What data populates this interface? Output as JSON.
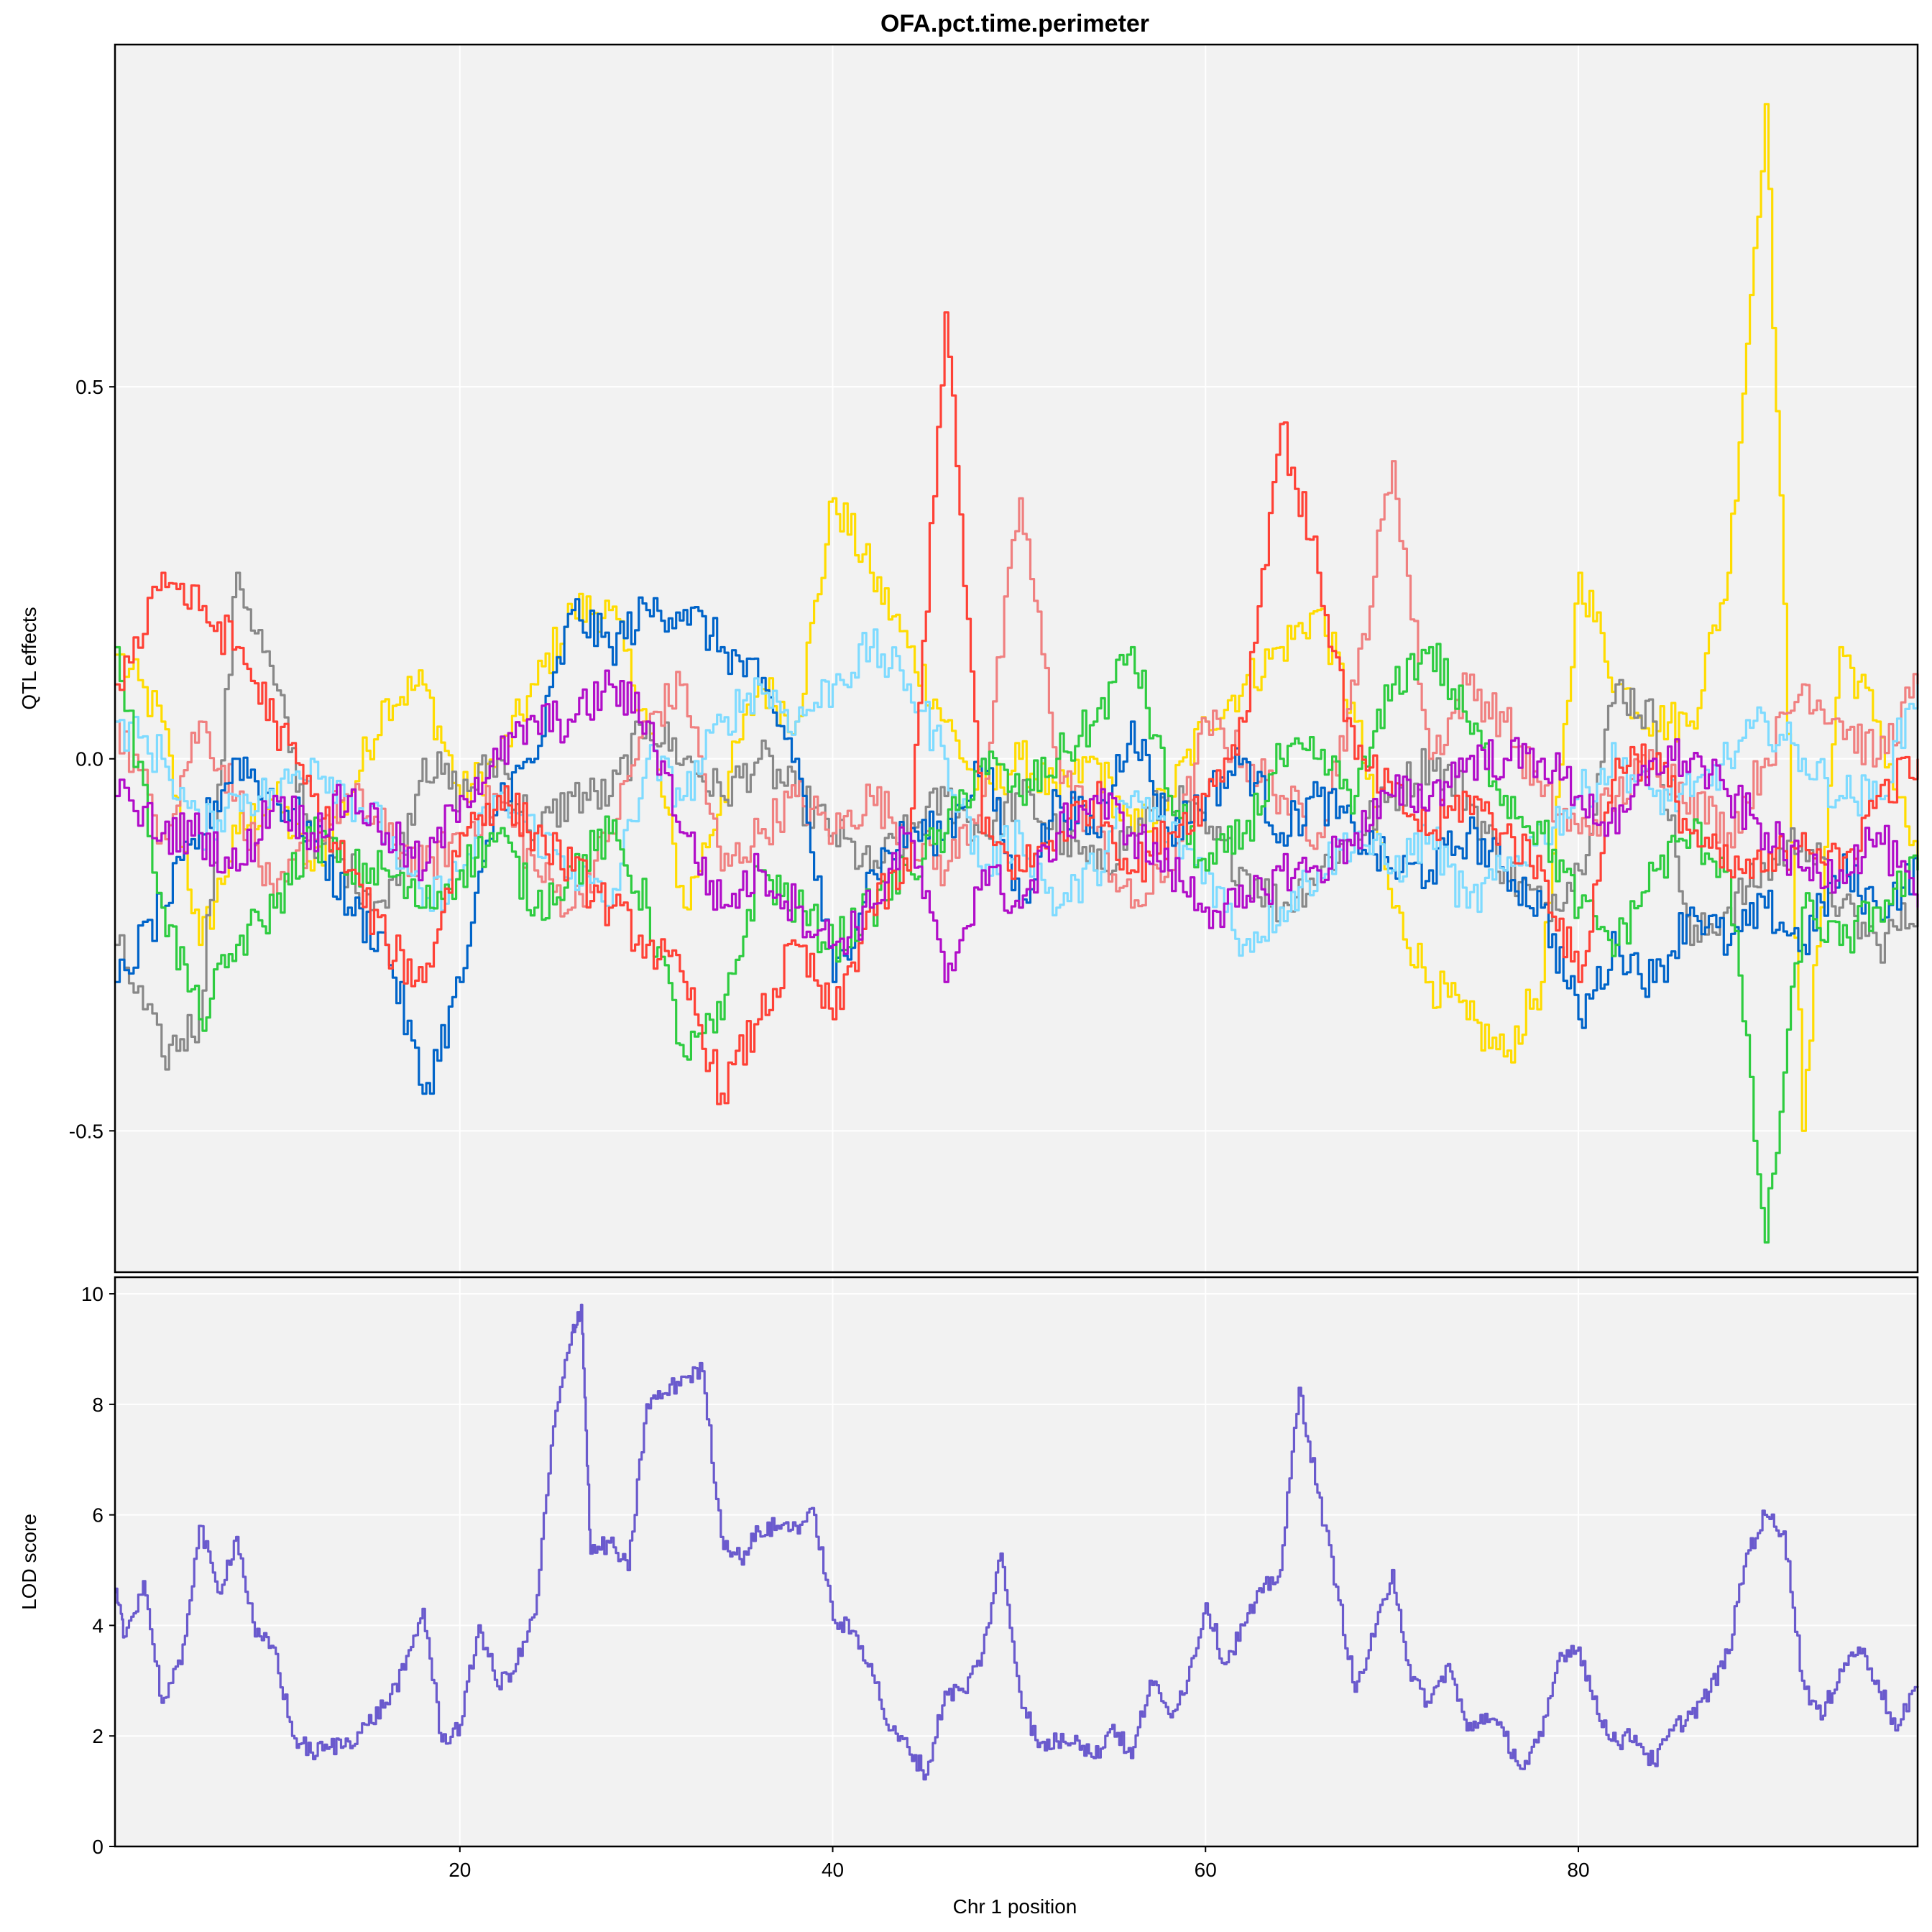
{
  "chart_data": [
    {
      "type": "line",
      "title": "OFA.pct.time.perimeter",
      "ylabel": "QTL effects",
      "xlabel": "",
      "xlim": [
        1.5,
        98.2
      ],
      "ylim": [
        -0.69,
        0.96
      ],
      "yticks": [
        -0.5,
        0.0,
        0.5
      ],
      "ytick_labels": [
        "-0.5",
        "0.0",
        "0.5"
      ],
      "xticks": [
        20,
        40,
        60,
        80
      ],
      "grid": true,
      "x": [
        1.5,
        4,
        6,
        8,
        10,
        12,
        14,
        16,
        18,
        20,
        22,
        24,
        26,
        28,
        30,
        32,
        34,
        36,
        38,
        40,
        42,
        44,
        46,
        48,
        50,
        52,
        54,
        56,
        58,
        60,
        62,
        64,
        66,
        68,
        70,
        72,
        74,
        76,
        78,
        80,
        82,
        84,
        86,
        88,
        90,
        92,
        94,
        96,
        98.2
      ],
      "series": [
        {
          "color": "#FFDC00",
          "values": [
            0.14,
            0.05,
            -0.25,
            -0.1,
            -0.05,
            -0.15,
            -0.05,
            0.08,
            0.1,
            -0.05,
            0.0,
            0.1,
            0.2,
            0.2,
            0.05,
            -0.2,
            -0.05,
            0.1,
            0.05,
            0.35,
            0.25,
            0.15,
            0.05,
            -0.05,
            0.0,
            -0.05,
            0.0,
            -0.1,
            -0.05,
            0.05,
            0.1,
            0.15,
            0.2,
            0.05,
            -0.2,
            -0.3,
            -0.35,
            -0.4,
            -0.3,
            0.25,
            0.1,
            0.05,
            0.05,
            0.25,
            0.88,
            -0.5,
            0.15,
            0.05,
            -0.15
          ]
        },
        {
          "color": "#888888",
          "values": [
            -0.25,
            -0.4,
            -0.35,
            0.25,
            0.1,
            -0.1,
            -0.15,
            -0.2,
            0.0,
            -0.05,
            0.0,
            -0.1,
            -0.05,
            -0.05,
            0.05,
            0.0,
            -0.05,
            0.0,
            -0.05,
            -0.1,
            -0.15,
            -0.1,
            -0.05,
            -0.1,
            -0.05,
            -0.1,
            -0.15,
            -0.1,
            -0.05,
            -0.1,
            -0.15,
            -0.2,
            -0.15,
            -0.1,
            -0.05,
            0.0,
            -0.05,
            -0.15,
            -0.2,
            -0.15,
            0.1,
            0.05,
            -0.25,
            -0.2,
            -0.15,
            -0.1,
            -0.2,
            -0.25,
            -0.2
          ]
        },
        {
          "color": "#F08080",
          "values": [
            0.05,
            -0.1,
            0.05,
            -0.05,
            -0.2,
            -0.1,
            -0.05,
            -0.1,
            -0.15,
            -0.1,
            -0.05,
            -0.15,
            -0.2,
            -0.1,
            0.05,
            0.1,
            -0.15,
            -0.1,
            -0.05,
            -0.1,
            -0.05,
            -0.1,
            -0.15,
            -0.05,
            0.35,
            0.0,
            -0.1,
            -0.2,
            -0.15,
            0.05,
            0.0,
            -0.05,
            -0.1,
            0.1,
            0.4,
            0.0,
            0.1,
            0.05,
            -0.05,
            -0.1,
            -0.05,
            0.0,
            -0.05,
            -0.1,
            0.0,
            0.1,
            0.05,
            0.0,
            0.1
          ]
        },
        {
          "color": "#0064C9",
          "values": [
            -0.3,
            -0.2,
            -0.1,
            0.0,
            -0.05,
            -0.1,
            -0.2,
            -0.25,
            -0.45,
            -0.3,
            -0.05,
            0.0,
            0.2,
            0.15,
            0.2,
            0.2,
            0.15,
            0.1,
            0.0,
            -0.3,
            -0.15,
            -0.1,
            -0.1,
            0.0,
            -0.2,
            -0.05,
            -0.1,
            0.05,
            -0.1,
            -0.05,
            0.0,
            -0.1,
            -0.05,
            -0.1,
            -0.15,
            -0.15,
            -0.1,
            -0.15,
            -0.2,
            -0.35,
            -0.25,
            -0.3,
            -0.2,
            -0.25,
            -0.2,
            -0.25,
            -0.15,
            -0.2,
            -0.15
          ]
        },
        {
          "color": "#7FDBFF",
          "values": [
            0.05,
            0.0,
            -0.1,
            -0.05,
            -0.05,
            0.0,
            -0.05,
            -0.1,
            -0.2,
            -0.15,
            -0.05,
            -0.1,
            -0.15,
            -0.2,
            0.0,
            -0.05,
            0.05,
            0.1,
            0.05,
            0.1,
            0.15,
            0.1,
            0.0,
            -0.15,
            -0.1,
            -0.2,
            -0.15,
            -0.05,
            -0.1,
            -0.15,
            -0.25,
            -0.2,
            -0.15,
            -0.1,
            -0.15,
            -0.1,
            -0.2,
            -0.15,
            -0.1,
            -0.05,
            0.0,
            -0.05,
            -0.05,
            0.0,
            0.05,
            0.0,
            -0.05,
            -0.05,
            0.1
          ]
        },
        {
          "color": "#2ECC40",
          "values": [
            0.15,
            -0.2,
            -0.35,
            -0.25,
            -0.2,
            -0.1,
            -0.15,
            -0.15,
            -0.2,
            -0.15,
            -0.1,
            -0.2,
            -0.15,
            -0.1,
            -0.2,
            -0.4,
            -0.35,
            -0.15,
            -0.2,
            -0.25,
            -0.2,
            -0.15,
            -0.1,
            0.0,
            -0.05,
            0.0,
            0.05,
            0.15,
            -0.05,
            -0.15,
            -0.1,
            0.0,
            0.0,
            -0.05,
            0.1,
            0.15,
            0.05,
            -0.05,
            -0.1,
            -0.2,
            -0.25,
            -0.15,
            -0.1,
            -0.15,
            -0.65,
            -0.2,
            -0.25,
            -0.2,
            -0.15
          ]
        },
        {
          "color": "#FF4136",
          "values": [
            0.1,
            0.25,
            0.2,
            0.15,
            0.05,
            -0.05,
            -0.15,
            -0.25,
            -0.3,
            -0.1,
            -0.05,
            -0.1,
            -0.15,
            -0.2,
            -0.25,
            -0.3,
            -0.45,
            -0.35,
            -0.25,
            -0.35,
            -0.2,
            -0.15,
            0.6,
            -0.1,
            -0.15,
            -0.1,
            -0.05,
            -0.15,
            -0.1,
            -0.05,
            0.05,
            0.45,
            0.25,
            0.0,
            -0.05,
            -0.1,
            -0.05,
            -0.1,
            -0.15,
            -0.3,
            0.0,
            0.0,
            -0.1,
            -0.15,
            -0.15,
            -0.1,
            -0.15,
            -0.05,
            0.0
          ]
        },
        {
          "color": "#B10DC9",
          "values": [
            -0.05,
            -0.1,
            -0.1,
            -0.15,
            -0.05,
            -0.1,
            -0.05,
            -0.1,
            -0.15,
            -0.05,
            0.0,
            0.05,
            0.05,
            0.1,
            0.05,
            -0.1,
            -0.2,
            -0.15,
            -0.2,
            -0.25,
            -0.2,
            -0.1,
            -0.3,
            -0.15,
            -0.2,
            -0.1,
            -0.05,
            -0.1,
            -0.15,
            -0.2,
            -0.2,
            -0.15,
            -0.15,
            -0.1,
            -0.05,
            -0.05,
            0.0,
            0.0,
            0.0,
            -0.05,
            -0.1,
            0.0,
            0.0,
            -0.05,
            -0.1,
            -0.15,
            -0.15,
            -0.1,
            -0.2
          ]
        }
      ]
    },
    {
      "type": "line",
      "title": "",
      "ylabel": "LOD score",
      "xlabel": "Chr 1 position",
      "xlim": [
        1.5,
        98.2
      ],
      "ylim": [
        0,
        10.3
      ],
      "yticks": [
        0,
        2,
        4,
        6,
        8,
        10
      ],
      "xticks": [
        20,
        40,
        60,
        80
      ],
      "grid": true,
      "series": [
        {
          "color": "#6A5ACD",
          "x": [
            1.5,
            2,
            3,
            4,
            5,
            6,
            7,
            8,
            9,
            10,
            11,
            12,
            13,
            14,
            15,
            16,
            17,
            18,
            19,
            20,
            21,
            22,
            23,
            24,
            25,
            26,
            26.5,
            27,
            28,
            29,
            30,
            31,
            32,
            33,
            34,
            35,
            36,
            37,
            38,
            39,
            40,
            41,
            42,
            43,
            44,
            45,
            46,
            47,
            48,
            49,
            50,
            51,
            52,
            53,
            54,
            55,
            56,
            57,
            58,
            59,
            60,
            61,
            62,
            63,
            64,
            65,
            66,
            67,
            68,
            69,
            70,
            71,
            72,
            73,
            74,
            75,
            76,
            77,
            78,
            79,
            80,
            81,
            82,
            83,
            84,
            85,
            86,
            87,
            88,
            89,
            90,
            91,
            92,
            93,
            94,
            95,
            96,
            97,
            98.2
          ],
          "values": [
            4.6,
            3.8,
            4.8,
            2.6,
            3.3,
            5.8,
            4.6,
            5.6,
            3.8,
            3.6,
            2.0,
            1.7,
            1.8,
            1.9,
            2.2,
            2.6,
            3.2,
            4.3,
            1.9,
            2.2,
            4.0,
            2.9,
            3.3,
            4.2,
            7.6,
            9.3,
            9.8,
            5.3,
            5.5,
            5.0,
            8.0,
            8.2,
            8.5,
            8.6,
            5.6,
            5.2,
            5.7,
            5.8,
            5.8,
            6.0,
            4.1,
            3.9,
            3.3,
            2.1,
            1.8,
            1.3,
            2.8,
            2.8,
            3.5,
            5.3,
            2.8,
            1.8,
            1.9,
            2.0,
            1.6,
            2.2,
            1.6,
            3.0,
            2.4,
            3.0,
            4.4,
            3.3,
            4.0,
            4.6,
            5.0,
            8.3,
            6.4,
            4.7,
            2.8,
            3.8,
            5.0,
            3.0,
            2.6,
            3.3,
            2.1,
            2.4,
            2.0,
            1.4,
            2.0,
            3.5,
            3.6,
            2.4,
            1.9,
            2.0,
            1.5,
            2.1,
            2.4,
            2.8,
            3.5,
            5.3,
            6.0,
            5.7,
            3.0,
            2.3,
            3.2,
            3.6,
            3.0,
            2.1,
            2.9
          ]
        }
      ]
    }
  ]
}
